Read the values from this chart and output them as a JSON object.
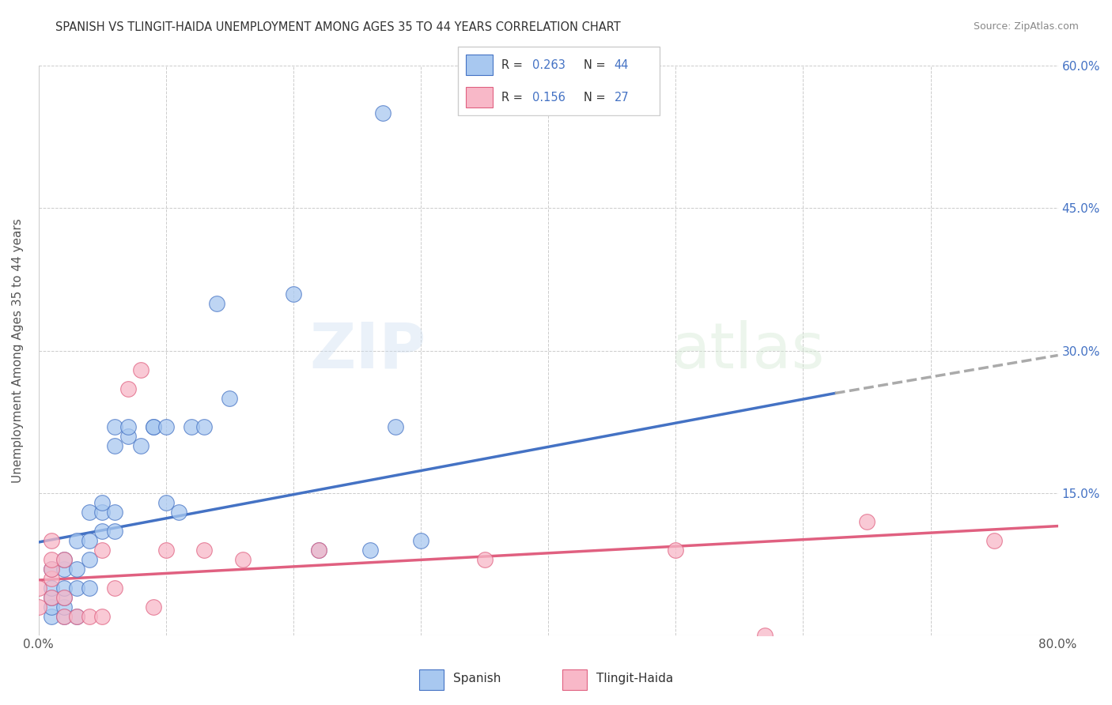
{
  "title": "SPANISH VS TLINGIT-HAIDA UNEMPLOYMENT AMONG AGES 35 TO 44 YEARS CORRELATION CHART",
  "source": "Source: ZipAtlas.com",
  "ylabel": "Unemployment Among Ages 35 to 44 years",
  "xlim": [
    0,
    0.8
  ],
  "ylim": [
    0,
    0.6
  ],
  "ytick_positions": [
    0.0,
    0.15,
    0.3,
    0.45,
    0.6
  ],
  "ytick_labels": [
    "",
    "15.0%",
    "30.0%",
    "45.0%",
    "60.0%"
  ],
  "xtick_positions": [
    0.0,
    0.1,
    0.2,
    0.3,
    0.4,
    0.5,
    0.6,
    0.7,
    0.8
  ],
  "xtick_labels": [
    "0.0%",
    "",
    "",
    "",
    "",
    "",
    "",
    "",
    "80.0%"
  ],
  "spanish_color": "#A8C8F0",
  "tlingit_color": "#F8B8C8",
  "trend_color_spanish": "#4472C4",
  "trend_color_tlingit": "#E06080",
  "trend_color_ext": "#AAAAAA",
  "spanish_x": [
    0.01,
    0.01,
    0.01,
    0.01,
    0.01,
    0.02,
    0.02,
    0.02,
    0.02,
    0.02,
    0.02,
    0.03,
    0.03,
    0.03,
    0.03,
    0.04,
    0.04,
    0.04,
    0.04,
    0.05,
    0.05,
    0.05,
    0.06,
    0.06,
    0.06,
    0.06,
    0.07,
    0.07,
    0.08,
    0.09,
    0.09,
    0.1,
    0.1,
    0.11,
    0.12,
    0.13,
    0.14,
    0.15,
    0.2,
    0.22,
    0.26,
    0.27,
    0.28,
    0.3
  ],
  "spanish_y": [
    0.02,
    0.03,
    0.04,
    0.05,
    0.07,
    0.02,
    0.03,
    0.04,
    0.05,
    0.07,
    0.08,
    0.02,
    0.05,
    0.07,
    0.1,
    0.05,
    0.08,
    0.1,
    0.13,
    0.11,
    0.13,
    0.14,
    0.11,
    0.13,
    0.2,
    0.22,
    0.21,
    0.22,
    0.2,
    0.22,
    0.22,
    0.14,
    0.22,
    0.13,
    0.22,
    0.22,
    0.35,
    0.25,
    0.36,
    0.09,
    0.09,
    0.55,
    0.22,
    0.1
  ],
  "tlingit_x": [
    0.0,
    0.0,
    0.01,
    0.01,
    0.01,
    0.01,
    0.01,
    0.02,
    0.02,
    0.02,
    0.03,
    0.04,
    0.05,
    0.05,
    0.06,
    0.07,
    0.08,
    0.09,
    0.1,
    0.13,
    0.16,
    0.22,
    0.35,
    0.5,
    0.57,
    0.65,
    0.75
  ],
  "tlingit_y": [
    0.03,
    0.05,
    0.04,
    0.06,
    0.07,
    0.08,
    0.1,
    0.02,
    0.04,
    0.08,
    0.02,
    0.02,
    0.02,
    0.09,
    0.05,
    0.26,
    0.28,
    0.03,
    0.09,
    0.09,
    0.08,
    0.09,
    0.08,
    0.09,
    0.0,
    0.12,
    0.1
  ],
  "trend_start_x": 0.0,
  "trend_split_x": 0.625,
  "trend_end_x": 0.8,
  "spanish_trend_y0": 0.098,
  "spanish_trend_y_split": 0.255,
  "spanish_trend_y_end": 0.295,
  "tlingit_trend_y0": 0.058,
  "tlingit_trend_y_end": 0.115
}
